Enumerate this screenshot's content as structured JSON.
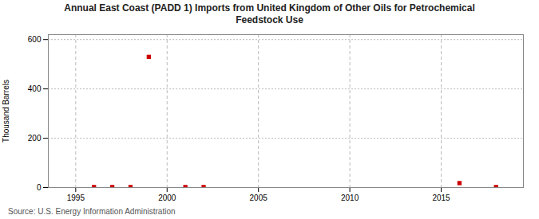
{
  "chart_data": {
    "type": "scatter",
    "title": "Annual East Coast (PADD 1) Imports from United Kingdom of Other Oils for Petrochemical\nFeedstock Use",
    "y_label": "Thousand Barrels",
    "source": "Source: U.S. Energy Information Administration",
    "x": [
      1996,
      1997,
      1998,
      1999,
      2001,
      2002,
      2016,
      2018
    ],
    "values": [
      2,
      2,
      2,
      530,
      2,
      2,
      18,
      2
    ],
    "color": "#cc0000",
    "marker": "square",
    "xlim": [
      1993.5,
      2019.5
    ],
    "xticks": [
      1995,
      2000,
      2005,
      2010,
      2015
    ],
    "ylim": [
      0,
      620
    ],
    "yticks": [
      0,
      200,
      400,
      600
    ],
    "grid": true
  }
}
